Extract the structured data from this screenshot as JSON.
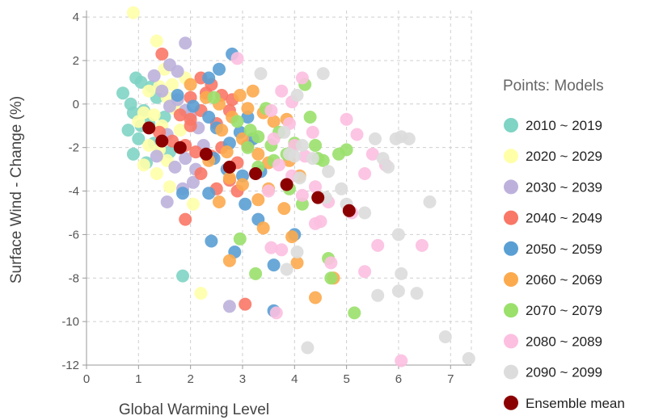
{
  "chart_data": {
    "type": "scatter",
    "xlabel": "Global Warming Level",
    "ylabel": "Surface Wind - Change (%)",
    "xlim": [
      0,
      7.4
    ],
    "ylim": [
      -12,
      4.3
    ],
    "xticks": [
      0,
      1,
      2,
      3,
      4,
      5,
      6,
      7
    ],
    "yticks": [
      4,
      2,
      0,
      -2,
      -4,
      -6,
      -8,
      -10,
      -12
    ],
    "grid": true,
    "legend": {
      "title": "Points: Models",
      "placement": "right"
    },
    "series": [
      {
        "name": "2010 ~ 2019",
        "color": "#7fd4c4",
        "points": [
          [
            0.7,
            0.5
          ],
          [
            0.85,
            0
          ],
          [
            0.95,
            1.2
          ],
          [
            1.05,
            1.0
          ],
          [
            0.9,
            -0.4
          ],
          [
            1.1,
            -0.3
          ],
          [
            0.8,
            -1.2
          ],
          [
            0.9,
            -2.3
          ],
          [
            1.0,
            -1.6
          ],
          [
            1.15,
            -2.7
          ],
          [
            1.2,
            -0.9
          ],
          [
            1.3,
            -1.8
          ],
          [
            1.35,
            0.3
          ],
          [
            1.5,
            -0.6
          ],
          [
            1.6,
            -2.2
          ],
          [
            1.85,
            -7.9
          ],
          [
            1.05,
            -1.0
          ],
          [
            1.25,
            0.8
          ]
        ]
      },
      {
        "name": "2020 ~ 2029",
        "color": "#ffffa8",
        "points": [
          [
            0.9,
            4.2
          ],
          [
            1.35,
            2.9
          ],
          [
            1.5,
            1.6
          ],
          [
            1.4,
            0.8
          ],
          [
            1.2,
            0.6
          ],
          [
            1.1,
            -0.4
          ],
          [
            1.0,
            -0.8
          ],
          [
            1.3,
            -0.5
          ],
          [
            1.45,
            -1.0
          ],
          [
            1.55,
            0.3
          ],
          [
            1.7,
            -0.2
          ],
          [
            1.9,
            1.2
          ],
          [
            1.2,
            -1.9
          ],
          [
            1.4,
            -2.1
          ],
          [
            1.55,
            -2.6
          ],
          [
            1.35,
            -3.2
          ],
          [
            1.6,
            -3.8
          ],
          [
            2.05,
            -4.6
          ],
          [
            2.2,
            -8.7
          ],
          [
            1.1,
            -2.8
          ],
          [
            1.8,
            -1.2
          ],
          [
            1.65,
            0.9
          ]
        ]
      },
      {
        "name": "2030 ~ 2039",
        "color": "#bdb1dc",
        "points": [
          [
            1.9,
            2.8
          ],
          [
            1.6,
            1.8
          ],
          [
            1.75,
            1.5
          ],
          [
            1.3,
            1.3
          ],
          [
            1.45,
            0.6
          ],
          [
            1.6,
            -0.1
          ],
          [
            1.75,
            0.2
          ],
          [
            1.9,
            -0.3
          ],
          [
            2.0,
            -0.5
          ],
          [
            2.15,
            -1.1
          ],
          [
            1.55,
            -1.4
          ],
          [
            1.9,
            -2.5
          ],
          [
            2.1,
            -3.0
          ],
          [
            1.55,
            -4.5
          ],
          [
            1.85,
            -3.9
          ],
          [
            2.75,
            -9.3
          ],
          [
            1.35,
            -2.4
          ],
          [
            2.25,
            -1.9
          ],
          [
            2.05,
            -3.6
          ],
          [
            1.7,
            -2.9
          ]
        ]
      },
      {
        "name": "2040 ~ 2049",
        "color": "#f97766",
        "points": [
          [
            1.45,
            2.3
          ],
          [
            2.2,
            1.2
          ],
          [
            2.4,
            0.9
          ],
          [
            2.0,
            0.3
          ],
          [
            2.3,
            0.5
          ],
          [
            2.6,
            0.4
          ],
          [
            2.8,
            0.2
          ],
          [
            1.8,
            -0.5
          ],
          [
            2.0,
            -0.7
          ],
          [
            2.2,
            -0.3
          ],
          [
            2.5,
            -0.9
          ],
          [
            2.75,
            -0.3
          ],
          [
            1.4,
            -1.3
          ],
          [
            1.65,
            -1.7
          ],
          [
            1.9,
            -1.9
          ],
          [
            2.1,
            -2.2
          ],
          [
            2.4,
            -2.4
          ],
          [
            2.6,
            -2.0
          ],
          [
            2.9,
            -2.7
          ],
          [
            3.1,
            -1.9
          ],
          [
            2.2,
            -3.2
          ],
          [
            2.5,
            -3.9
          ],
          [
            2.75,
            -3.5
          ],
          [
            2.9,
            -4.0
          ],
          [
            1.9,
            -5.3
          ],
          [
            3.05,
            -9.2
          ],
          [
            2.0,
            -1.0
          ]
        ]
      },
      {
        "name": "2050 ~ 2059",
        "color": "#5a9fd4",
        "points": [
          [
            2.8,
            2.3
          ],
          [
            2.55,
            1.6
          ],
          [
            2.35,
            1.2
          ],
          [
            1.75,
            0.4
          ],
          [
            2.05,
            -0.1
          ],
          [
            2.35,
            -0.6
          ],
          [
            2.5,
            -1.1
          ],
          [
            2.95,
            -1.3
          ],
          [
            3.1,
            -0.6
          ],
          [
            3.2,
            -1.6
          ],
          [
            2.75,
            -1.8
          ],
          [
            2.45,
            -2.5
          ],
          [
            2.7,
            -3.0
          ],
          [
            3.0,
            -3.3
          ],
          [
            3.35,
            -3.1
          ],
          [
            2.35,
            -4.1
          ],
          [
            3.05,
            -4.6
          ],
          [
            3.3,
            -5.3
          ],
          [
            2.4,
            -6.3
          ],
          [
            2.85,
            -6.8
          ],
          [
            3.6,
            -7.4
          ],
          [
            3.6,
            -9.5
          ],
          [
            4.0,
            -6.0
          ],
          [
            1.85,
            -4.1
          ]
        ]
      },
      {
        "name": "2060 ~ 2069",
        "color": "#fcaa4e",
        "points": [
          [
            2.0,
            0.9
          ],
          [
            2.3,
            0.3
          ],
          [
            2.55,
            0.0
          ],
          [
            2.95,
            0.4
          ],
          [
            3.2,
            0.6
          ],
          [
            3.1,
            -0.2
          ],
          [
            3.4,
            -0.4
          ],
          [
            3.6,
            -0.8
          ],
          [
            2.8,
            -0.6
          ],
          [
            2.6,
            -1.2
          ],
          [
            3.0,
            -1.6
          ],
          [
            3.3,
            -2.3
          ],
          [
            3.5,
            -2.7
          ],
          [
            2.7,
            -2.2
          ],
          [
            2.75,
            -3.4
          ],
          [
            3.0,
            -3.7
          ],
          [
            3.3,
            -4.4
          ],
          [
            3.5,
            -3.9
          ],
          [
            3.8,
            -4.8
          ],
          [
            3.9,
            -2.6
          ],
          [
            4.1,
            -3.3
          ],
          [
            2.55,
            -4.5
          ],
          [
            3.4,
            -5.7
          ],
          [
            3.95,
            -6.1
          ],
          [
            4.05,
            -7.3
          ],
          [
            2.75,
            -7.2
          ],
          [
            4.4,
            -8.9
          ],
          [
            4.75,
            -8.0
          ],
          [
            3.85,
            -0.7
          ],
          [
            2.35,
            -2.6
          ]
        ]
      },
      {
        "name": "2070 ~ 2079",
        "color": "#9ae06b",
        "points": [
          [
            2.45,
            0.3
          ],
          [
            2.9,
            -0.8
          ],
          [
            3.15,
            -1.2
          ],
          [
            3.3,
            -1.5
          ],
          [
            3.45,
            -0.2
          ],
          [
            3.55,
            -1.9
          ],
          [
            3.7,
            -1.3
          ],
          [
            3.1,
            -2.0
          ],
          [
            3.3,
            -2.9
          ],
          [
            3.6,
            -2.6
          ],
          [
            3.85,
            -2.3
          ],
          [
            4.0,
            -1.8
          ],
          [
            4.3,
            -0.6
          ],
          [
            4.2,
            0.9
          ],
          [
            4.4,
            -1.9
          ],
          [
            4.55,
            -2.6
          ],
          [
            4.85,
            -2.3
          ],
          [
            3.9,
            -3.9
          ],
          [
            4.15,
            -4.6
          ],
          [
            2.95,
            -6.2
          ],
          [
            3.25,
            -7.8
          ],
          [
            4.65,
            -7.1
          ],
          [
            4.7,
            -8.0
          ],
          [
            5.15,
            -9.6
          ],
          [
            5.0,
            -2.1
          ],
          [
            4.45,
            -2.5
          ]
        ]
      },
      {
        "name": "2080 ~ 2089",
        "color": "#fcbfe0",
        "points": [
          [
            2.9,
            2.1
          ],
          [
            4.15,
            1.2
          ],
          [
            3.75,
            0.6
          ],
          [
            3.95,
            0.1
          ],
          [
            3.55,
            -0.3
          ],
          [
            3.9,
            -0.9
          ],
          [
            3.6,
            -1.6
          ],
          [
            4.0,
            -1.9
          ],
          [
            4.35,
            -1.3
          ],
          [
            4.2,
            -2.4
          ],
          [
            3.7,
            -2.8
          ],
          [
            3.95,
            -3.3
          ],
          [
            3.5,
            -4.0
          ],
          [
            3.85,
            -3.7
          ],
          [
            4.15,
            -4.2
          ],
          [
            4.4,
            -3.8
          ],
          [
            4.65,
            -4.5
          ],
          [
            5.0,
            -0.7
          ],
          [
            5.2,
            -1.4
          ],
          [
            5.5,
            -2.3
          ],
          [
            5.35,
            -3.2
          ],
          [
            5.1,
            -5.0
          ],
          [
            4.4,
            -5.5
          ],
          [
            4.5,
            -5.4
          ],
          [
            3.55,
            -6.6
          ],
          [
            3.75,
            -6.7
          ],
          [
            4.7,
            -7.3
          ],
          [
            5.35,
            -7.7
          ],
          [
            5.6,
            -6.5
          ],
          [
            6.45,
            -6.5
          ],
          [
            5.75,
            -2.8
          ],
          [
            3.65,
            -9.6
          ],
          [
            6.05,
            -11.8
          ]
        ]
      },
      {
        "name": "2090 ~ 2099",
        "color": "#dcdcdc",
        "points": [
          [
            3.35,
            1.4
          ],
          [
            4.55,
            1.4
          ],
          [
            4.05,
            0.4
          ],
          [
            3.8,
            -1.3
          ],
          [
            4.15,
            -1.9
          ],
          [
            4.0,
            -2.4
          ],
          [
            3.9,
            -2.3
          ],
          [
            4.1,
            -3.4
          ],
          [
            4.35,
            -2.5
          ],
          [
            4.65,
            -3.1
          ],
          [
            4.6,
            -4.3
          ],
          [
            4.9,
            -3.9
          ],
          [
            5.35,
            -5.0
          ],
          [
            5.0,
            -4.6
          ],
          [
            5.55,
            -1.6
          ],
          [
            5.7,
            -2.5
          ],
          [
            5.8,
            -2.9
          ],
          [
            5.95,
            -1.6
          ],
          [
            6.05,
            -1.5
          ],
          [
            6.2,
            -1.6
          ],
          [
            6.0,
            -6.0
          ],
          [
            6.05,
            -7.8
          ],
          [
            6.0,
            -8.6
          ],
          [
            5.6,
            -8.8
          ],
          [
            6.35,
            -8.7
          ],
          [
            6.6,
            -4.5
          ],
          [
            4.25,
            -11.2
          ],
          [
            6.9,
            -10.7
          ],
          [
            7.35,
            -11.7
          ],
          [
            4.05,
            -6.8
          ],
          [
            3.85,
            -7.6
          ]
        ]
      },
      {
        "name": "Ensemble mean",
        "color": "#8b0000",
        "points": [
          [
            1.2,
            -1.1
          ],
          [
            1.45,
            -1.7
          ],
          [
            1.8,
            -2.0
          ],
          [
            2.3,
            -2.3
          ],
          [
            2.75,
            -2.9
          ],
          [
            3.25,
            -3.2
          ],
          [
            3.85,
            -3.7
          ],
          [
            4.45,
            -4.3
          ],
          [
            5.05,
            -4.9
          ]
        ]
      }
    ]
  }
}
